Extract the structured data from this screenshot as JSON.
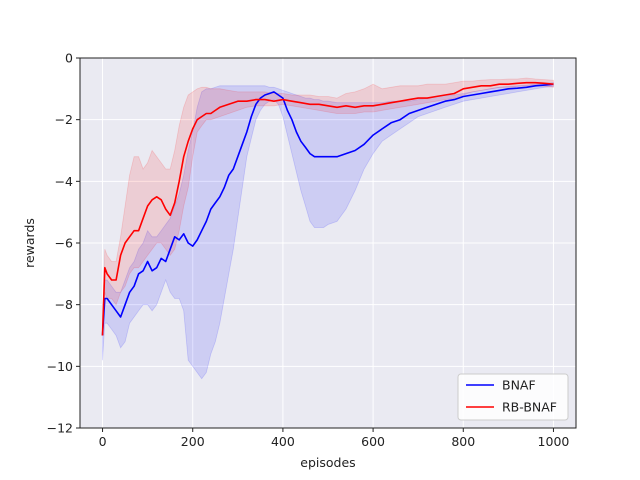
{
  "chart_data": {
    "type": "line",
    "title": "",
    "xlabel": "episodes",
    "ylabel": "rewards",
    "xlim": [
      -50,
      1050
    ],
    "ylim": [
      -12,
      0
    ],
    "xticks": [
      0,
      200,
      400,
      600,
      800,
      1000
    ],
    "yticks": [
      -12,
      -10,
      -8,
      -6,
      -4,
      -2,
      0
    ],
    "xtick_labels": [
      "0",
      "200",
      "400",
      "600",
      "800",
      "1000"
    ],
    "ytick_labels": [
      "−12",
      "−10",
      "−8",
      "−6",
      "−4",
      "−2",
      "0"
    ],
    "grid": true,
    "legend_position": "bottom-right",
    "series": [
      {
        "name": "BNAF",
        "color": "#0000ff",
        "band_color": "#0000ff",
        "x": [
          0,
          5,
          10,
          20,
          30,
          40,
          50,
          60,
          70,
          80,
          90,
          100,
          110,
          120,
          130,
          140,
          150,
          160,
          170,
          180,
          190,
          200,
          210,
          220,
          230,
          240,
          250,
          260,
          270,
          280,
          290,
          300,
          310,
          320,
          330,
          340,
          350,
          360,
          370,
          380,
          390,
          400,
          410,
          420,
          430,
          440,
          450,
          460,
          470,
          480,
          490,
          500,
          520,
          540,
          560,
          580,
          600,
          620,
          640,
          660,
          680,
          700,
          720,
          740,
          760,
          780,
          800,
          820,
          840,
          860,
          880,
          900,
          920,
          940,
          960,
          980,
          1000
        ],
        "values": [
          -9.0,
          -7.8,
          -7.8,
          -8.0,
          -8.2,
          -8.4,
          -8.0,
          -7.6,
          -7.4,
          -7.0,
          -6.9,
          -6.6,
          -6.9,
          -6.8,
          -6.5,
          -6.6,
          -6.2,
          -5.8,
          -5.9,
          -5.7,
          -6.0,
          -6.1,
          -5.9,
          -5.6,
          -5.3,
          -4.9,
          -4.7,
          -4.5,
          -4.2,
          -3.8,
          -3.6,
          -3.2,
          -2.8,
          -2.4,
          -1.9,
          -1.5,
          -1.3,
          -1.2,
          -1.15,
          -1.1,
          -1.2,
          -1.3,
          -1.7,
          -2.0,
          -2.4,
          -2.7,
          -2.9,
          -3.1,
          -3.2,
          -3.2,
          -3.2,
          -3.2,
          -3.2,
          -3.1,
          -3.0,
          -2.8,
          -2.5,
          -2.3,
          -2.1,
          -2.0,
          -1.8,
          -1.7,
          -1.6,
          -1.5,
          -1.4,
          -1.35,
          -1.25,
          -1.2,
          -1.15,
          -1.1,
          -1.05,
          -1.0,
          -0.98,
          -0.95,
          -0.9,
          -0.88,
          -0.85
        ],
        "lower": [
          -9.8,
          -8.6,
          -8.6,
          -8.8,
          -9.0,
          -9.4,
          -9.2,
          -8.6,
          -8.4,
          -8.2,
          -8.0,
          -8.0,
          -8.2,
          -8.0,
          -7.6,
          -7.2,
          -7.6,
          -7.8,
          -7.8,
          -8.2,
          -9.8,
          -10.0,
          -10.2,
          -10.4,
          -10.2,
          -9.6,
          -9.2,
          -8.6,
          -7.8,
          -7.0,
          -6.2,
          -5.2,
          -4.2,
          -3.2,
          -2.6,
          -2.0,
          -1.7,
          -1.5,
          -1.4,
          -1.35,
          -1.5,
          -1.9,
          -2.5,
          -3.1,
          -3.7,
          -4.3,
          -4.8,
          -5.3,
          -5.5,
          -5.5,
          -5.5,
          -5.4,
          -5.3,
          -4.9,
          -4.3,
          -3.6,
          -3.1,
          -2.7,
          -2.5,
          -2.3,
          -2.1,
          -1.9,
          -1.8,
          -1.7,
          -1.6,
          -1.5,
          -1.4,
          -1.35,
          -1.3,
          -1.25,
          -1.2,
          -1.15,
          -1.1,
          -1.05,
          -1.0,
          -0.95,
          -0.92
        ],
        "upper": [
          -8.2,
          -7.2,
          -7.2,
          -7.4,
          -7.6,
          -7.6,
          -7.2,
          -6.8,
          -6.6,
          -6.2,
          -6.0,
          -5.6,
          -5.8,
          -5.8,
          -5.6,
          -5.4,
          -5.2,
          -4.8,
          -4.4,
          -3.8,
          -3.0,
          -2.4,
          -1.6,
          -1.1,
          -1.0,
          -1.0,
          -0.95,
          -0.9,
          -0.9,
          -0.9,
          -0.9,
          -0.9,
          -0.9,
          -0.9,
          -0.9,
          -0.9,
          -0.9,
          -0.9,
          -0.95,
          -0.95,
          -1.0,
          -1.05,
          -1.1,
          -1.15,
          -1.2,
          -1.25,
          -1.3,
          -1.3,
          -1.35,
          -1.35,
          -1.4,
          -1.4,
          -1.45,
          -1.45,
          -1.45,
          -1.45,
          -1.45,
          -1.45,
          -1.4,
          -1.4,
          -1.4,
          -1.35,
          -1.3,
          -1.25,
          -1.2,
          -1.2,
          -1.15,
          -1.1,
          -1.05,
          -1.0,
          -0.95,
          -0.92,
          -0.9,
          -0.88,
          -0.85,
          -0.82,
          -0.8
        ]
      },
      {
        "name": "RB-BNAF",
        "color": "#ff0000",
        "band_color": "#ff0000",
        "x": [
          0,
          5,
          10,
          20,
          30,
          40,
          50,
          60,
          70,
          80,
          90,
          100,
          110,
          120,
          130,
          140,
          150,
          160,
          170,
          180,
          190,
          200,
          210,
          220,
          230,
          240,
          250,
          260,
          280,
          300,
          320,
          340,
          360,
          380,
          400,
          420,
          440,
          460,
          480,
          500,
          520,
          540,
          560,
          580,
          600,
          620,
          640,
          660,
          680,
          700,
          720,
          740,
          760,
          780,
          800,
          820,
          840,
          860,
          880,
          900,
          920,
          940,
          960,
          980,
          1000
        ],
        "values": [
          -9.0,
          -6.8,
          -7.0,
          -7.2,
          -7.2,
          -6.4,
          -6.0,
          -5.8,
          -5.6,
          -5.6,
          -5.2,
          -4.8,
          -4.6,
          -4.5,
          -4.6,
          -4.9,
          -5.1,
          -4.7,
          -4.0,
          -3.2,
          -2.7,
          -2.3,
          -2.0,
          -1.9,
          -1.8,
          -1.8,
          -1.7,
          -1.6,
          -1.5,
          -1.4,
          -1.4,
          -1.35,
          -1.35,
          -1.4,
          -1.35,
          -1.4,
          -1.45,
          -1.5,
          -1.5,
          -1.55,
          -1.6,
          -1.55,
          -1.6,
          -1.55,
          -1.55,
          -1.5,
          -1.45,
          -1.4,
          -1.35,
          -1.3,
          -1.3,
          -1.25,
          -1.2,
          -1.15,
          -1.0,
          -0.95,
          -0.9,
          -0.9,
          -0.85,
          -0.85,
          -0.82,
          -0.8,
          -0.8,
          -0.82,
          -0.85
        ],
        "lower": [
          -9.0,
          -7.6,
          -7.8,
          -7.8,
          -8.0,
          -7.6,
          -7.4,
          -7.0,
          -6.8,
          -6.8,
          -6.6,
          -6.4,
          -6.2,
          -6.0,
          -6.0,
          -6.2,
          -6.4,
          -6.2,
          -5.6,
          -4.8,
          -4.2,
          -3.2,
          -2.4,
          -2.2,
          -2.0,
          -2.0,
          -1.95,
          -1.9,
          -1.8,
          -1.7,
          -1.6,
          -1.55,
          -1.55,
          -1.55,
          -1.5,
          -1.55,
          -1.6,
          -1.65,
          -1.7,
          -1.75,
          -1.8,
          -1.8,
          -1.8,
          -1.75,
          -1.75,
          -1.7,
          -1.65,
          -1.6,
          -1.55,
          -1.5,
          -1.45,
          -1.4,
          -1.35,
          -1.3,
          -1.2,
          -1.1,
          -1.05,
          -1.0,
          -0.95,
          -0.95,
          -0.92,
          -0.9,
          -0.9,
          -0.92,
          -0.95
        ],
        "upper": [
          -8.6,
          -6.2,
          -6.4,
          -6.6,
          -6.6,
          -5.8,
          -4.8,
          -3.8,
          -3.2,
          -3.2,
          -3.6,
          -3.4,
          -3.0,
          -3.2,
          -3.4,
          -3.6,
          -3.6,
          -3.0,
          -2.2,
          -1.6,
          -1.2,
          -1.1,
          -1.0,
          -0.95,
          -0.95,
          -1.0,
          -1.0,
          -1.0,
          -1.05,
          -1.1,
          -1.1,
          -1.1,
          -1.1,
          -1.15,
          -1.15,
          -1.2,
          -1.2,
          -1.2,
          -1.25,
          -1.25,
          -1.3,
          -1.15,
          -1.1,
          -1.0,
          -0.85,
          -1.0,
          -0.95,
          -0.9,
          -0.9,
          -0.9,
          -0.85,
          -0.85,
          -0.85,
          -0.8,
          -0.75,
          -0.75,
          -0.72,
          -0.7,
          -0.7,
          -0.68,
          -0.68,
          -0.65,
          -0.68,
          -0.7,
          -0.72
        ]
      }
    ]
  }
}
